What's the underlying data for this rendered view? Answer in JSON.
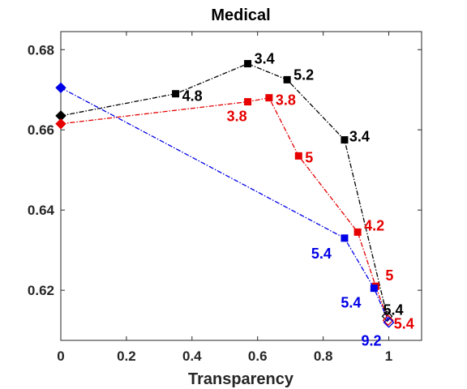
{
  "chart_data": {
    "type": "line",
    "title": "Medical",
    "xlabel": "Transparency",
    "ylabel": "",
    "xlim": [
      0,
      1.1
    ],
    "ylim": [
      0.6075,
      0.6845
    ],
    "xticks": [
      0,
      0.2,
      0.4,
      0.6,
      0.8,
      1
    ],
    "xtick_labels": [
      "0",
      "0.2",
      "0.4",
      "0.6",
      "0.8",
      "1"
    ],
    "yticks": [
      0.62,
      0.64,
      0.66,
      0.68
    ],
    "ytick_labels": [
      "0.62",
      "0.64",
      "0.66",
      "0.68"
    ],
    "grid": false,
    "series": [
      {
        "color": "#000000",
        "marker": "square",
        "start_marker": "diamond",
        "end_marker": "open-diamond",
        "points": [
          {
            "x": 0.0,
            "y": 0.6635,
            "label": ""
          },
          {
            "x": 0.35,
            "y": 0.669,
            "label": "4.8"
          },
          {
            "x": 0.57,
            "y": 0.6765,
            "label": "3.4"
          },
          {
            "x": 0.69,
            "y": 0.6725,
            "label": "5.2"
          },
          {
            "x": 0.865,
            "y": 0.6575,
            "label": "3.4"
          },
          {
            "x": 0.995,
            "y": 0.6135,
            "label": "5.4"
          }
        ]
      },
      {
        "color": "#e60000",
        "marker": "square",
        "start_marker": "diamond",
        "end_marker": "open-diamond",
        "points": [
          {
            "x": 0.0,
            "y": 0.6615,
            "label": ""
          },
          {
            "x": 0.57,
            "y": 0.667,
            "label": "3.8"
          },
          {
            "x": 0.635,
            "y": 0.668,
            "label": "3.8"
          },
          {
            "x": 0.725,
            "y": 0.6535,
            "label": "5"
          },
          {
            "x": 0.905,
            "y": 0.6345,
            "label": "4.2"
          },
          {
            "x": 0.96,
            "y": 0.621,
            "label": "5"
          },
          {
            "x": 0.998,
            "y": 0.6125,
            "label": "5.4"
          }
        ]
      },
      {
        "color": "#0000e6",
        "marker": "square",
        "start_marker": "diamond",
        "end_marker": "open-diamond",
        "points": [
          {
            "x": 0.0,
            "y": 0.6705,
            "label": ""
          },
          {
            "x": 0.865,
            "y": 0.633,
            "label": "5.4"
          },
          {
            "x": 0.955,
            "y": 0.6205,
            "label": "5.4"
          },
          {
            "x": 1.0,
            "y": 0.612,
            "label": "9.2"
          }
        ]
      }
    ]
  }
}
